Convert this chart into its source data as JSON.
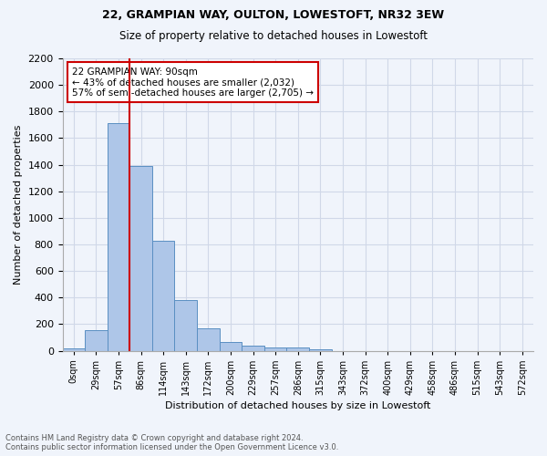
{
  "title1": "22, GRAMPIAN WAY, OULTON, LOWESTOFT, NR32 3EW",
  "title2": "Size of property relative to detached houses in Lowestoft",
  "xlabel": "Distribution of detached houses by size in Lowestoft",
  "ylabel": "Number of detached properties",
  "bar_values": [
    15,
    155,
    1710,
    1390,
    830,
    380,
    165,
    65,
    35,
    25,
    25,
    10,
    0,
    0,
    0,
    0,
    0,
    0,
    0,
    0
  ],
  "bin_labels": [
    "0sqm",
    "29sqm",
    "57sqm",
    "86sqm",
    "114sqm",
    "143sqm",
    "172sqm",
    "200sqm",
    "229sqm",
    "257sqm",
    "286sqm",
    "315sqm",
    "343sqm",
    "372sqm",
    "400sqm",
    "429sqm",
    "458sqm",
    "486sqm",
    "515sqm",
    "543sqm"
  ],
  "extra_label": "572sqm",
  "bar_color": "#aec6e8",
  "bar_edge_color": "#5a8fc2",
  "vline_color": "#cc0000",
  "annotation_text": "22 GRAMPIAN WAY: 90sqm\n← 43% of detached houses are smaller (2,032)\n57% of semi-detached houses are larger (2,705) →",
  "annotation_box_color": "#ffffff",
  "annotation_box_edge": "#cc0000",
  "ylim": [
    0,
    2200
  ],
  "yticks": [
    0,
    200,
    400,
    600,
    800,
    1000,
    1200,
    1400,
    1600,
    1800,
    2000,
    2200
  ],
  "grid_color": "#d0d8e8",
  "footnote1": "Contains HM Land Registry data © Crown copyright and database right 2024.",
  "footnote2": "Contains public sector information licensed under the Open Government Licence v3.0.",
  "bg_color": "#f0f4fb"
}
